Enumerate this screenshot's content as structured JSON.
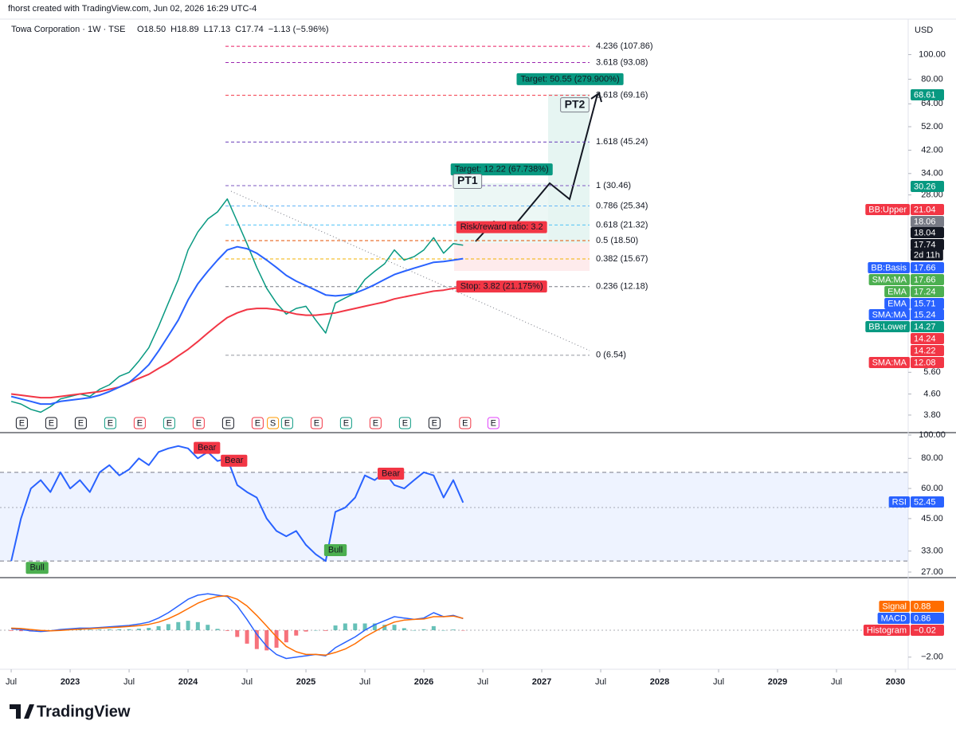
{
  "header": {
    "credit": "fhorst created with TradingView.com, Jun 02, 2026 16:29 UTC-4",
    "symbol": "Towa Corporation · 1W · TSE",
    "ohlc": [
      "O18.50",
      "H18.89",
      "L17.13",
      "C17.74",
      "−1.13 (−5.96%)"
    ],
    "currency": "USD"
  },
  "footer": {
    "brand": "TradingView"
  },
  "chart_data": [
    {
      "type": "line",
      "log_scale": true,
      "grid": false,
      "xlim": [
        2022.405,
        2030.108
      ],
      "ylim": [
        3.24,
        137
      ],
      "xticks": [
        {
          "value": 2022.5,
          "label": "Jul"
        },
        2023,
        {
          "value": 2023.5,
          "label": "Jul"
        },
        2024,
        {
          "value": 2024.5,
          "label": "Jul"
        },
        2025,
        {
          "value": 2025.5,
          "label": "Jul"
        },
        2026,
        {
          "value": 2026.5,
          "label": "Jul"
        },
        2027,
        {
          "value": 2027.5,
          "label": "Jul"
        },
        2028,
        {
          "value": 2028.5,
          "label": "Jul"
        },
        2029,
        {
          "value": 2029.5,
          "label": "Jul"
        },
        2030
      ],
      "yticks": [
        {
          "value": 3.8,
          "label": "3.80"
        },
        {
          "value": 4.6,
          "label": "4.60"
        },
        {
          "value": 5.6,
          "label": "5.60"
        },
        {
          "value": 28,
          "label": "28.00"
        },
        {
          "value": 34,
          "label": "34.00"
        },
        {
          "value": 42,
          "label": "42.00"
        },
        {
          "value": 52,
          "label": "52.00"
        },
        {
          "value": 64,
          "label": "64.00"
        },
        {
          "value": 80,
          "label": "80.00"
        },
        {
          "value": 100,
          "label": "100.00"
        }
      ],
      "x": [
        2022.5,
        2022.583,
        2022.667,
        2022.75,
        2022.833,
        2022.917,
        2023.0,
        2023.083,
        2023.167,
        2023.25,
        2023.333,
        2023.417,
        2023.5,
        2023.583,
        2023.667,
        2023.75,
        2023.833,
        2023.917,
        2024.0,
        2024.083,
        2024.167,
        2024.25,
        2024.333,
        2024.417,
        2024.5,
        2024.583,
        2024.667,
        2024.75,
        2024.833,
        2024.917,
        2025.0,
        2025.083,
        2025.167,
        2025.25,
        2025.333,
        2025.417,
        2025.5,
        2025.583,
        2025.667,
        2025.75,
        2025.833,
        2025.917,
        2026.0,
        2026.083,
        2026.167,
        2026.25,
        2026.333
      ],
      "series": [
        {
          "color": "#089981",
          "width": 1.5,
          "values": [
            4.3,
            4.2,
            4.0,
            3.9,
            4.1,
            4.4,
            4.5,
            4.6,
            4.5,
            4.8,
            5.0,
            5.4,
            5.6,
            6.2,
            7.0,
            8.5,
            10.5,
            13.0,
            17.0,
            20.0,
            22.5,
            24.0,
            27.0,
            22.0,
            18.0,
            14.5,
            12.0,
            10.5,
            9.5,
            10.0,
            10.2,
            9.0,
            8.0,
            10.5,
            11.0,
            11.5,
            13.0,
            14.0,
            15.0,
            17.0,
            15.5,
            16.0,
            17.0,
            19.0,
            16.5,
            18.0,
            17.74
          ]
        },
        {
          "color": "#f23645",
          "width": 2,
          "values": [
            4.6,
            4.55,
            4.5,
            4.45,
            4.45,
            4.5,
            4.55,
            4.6,
            4.65,
            4.7,
            4.8,
            4.9,
            5.1,
            5.3,
            5.5,
            5.8,
            6.1,
            6.5,
            6.9,
            7.4,
            8.0,
            8.6,
            9.2,
            9.6,
            9.9,
            10.0,
            10.0,
            9.9,
            9.7,
            9.5,
            9.4,
            9.4,
            9.5,
            9.6,
            9.8,
            10.0,
            10.2,
            10.4,
            10.6,
            10.9,
            11.1,
            11.3,
            11.5,
            11.7,
            11.8,
            12.0,
            12.08
          ]
        },
        {
          "color": "#2962ff",
          "width": 2,
          "values": [
            4.5,
            4.4,
            4.3,
            4.2,
            4.2,
            4.3,
            4.35,
            4.4,
            4.45,
            4.55,
            4.7,
            4.9,
            5.1,
            5.5,
            6.0,
            6.8,
            7.8,
            9.0,
            10.8,
            12.5,
            14.0,
            15.5,
            17.0,
            17.5,
            17.2,
            16.5,
            15.5,
            14.5,
            13.5,
            12.8,
            12.3,
            11.8,
            11.3,
            11.2,
            11.3,
            11.5,
            11.9,
            12.4,
            13.0,
            13.6,
            14.0,
            14.4,
            14.8,
            15.2,
            15.3,
            15.5,
            15.71
          ]
        }
      ],
      "fib": {
        "values": [
          107.86,
          93.08,
          69.16,
          45.24,
          30.46,
          25.34,
          21.32,
          18.5,
          15.67,
          12.18,
          6.54
        ],
        "value_labels": [
          "4.236 (107.86)",
          "3.618 (93.08)",
          "2.618 (69.16)",
          "1.618 (45.24)",
          "1 (30.46)",
          "0.786 (25.34)",
          "0.618 (21.32)",
          "0.5 (18.50)",
          "0.382 (15.67)",
          "0.236 (12.18)",
          "0 (6.54)"
        ],
        "colors": [
          "#e91e63",
          "#9c27b0",
          "#f23645",
          "#673ab7",
          "#7e57c2",
          "#64b5f6",
          "#4fc3f7",
          "#e65100",
          "#f0b000",
          "#787b86",
          "#9598a1"
        ]
      },
      "annotations": [
        {
          "text": "Target: 50.55 (279.900%)",
          "x": 2027.24,
          "y": 80,
          "color": "#089981",
          "style": "filled"
        },
        {
          "text": "Target: 12.22 (67.738%)",
          "x": 2026.66,
          "y": 35.3,
          "color": "#089981",
          "style": "filled"
        },
        {
          "text": "Risk/reward ratio: 3.2",
          "x": 2026.66,
          "y": 20.9,
          "color": "#f23645",
          "style": "filled"
        },
        {
          "text": "Stop: 3.82 (21.175%)",
          "x": 2026.66,
          "y": 12.2,
          "color": "#f23645",
          "style": "filled"
        },
        {
          "text": "PT1",
          "x": 2026.37,
          "y": 31.7,
          "color": "#131722",
          "style": "outline"
        },
        {
          "text": "PT2",
          "x": 2027.28,
          "y": 63.4,
          "color": "#131722",
          "style": "outline"
        }
      ],
      "events": [
        {
          "label": "E",
          "x": 2022.59,
          "color": "#131722"
        },
        {
          "label": "E",
          "x": 2022.84,
          "color": "#131722"
        },
        {
          "label": "E",
          "x": 2023.09,
          "color": "#131722"
        },
        {
          "label": "E",
          "x": 2023.34,
          "color": "#089981"
        },
        {
          "label": "E",
          "x": 2023.59,
          "color": "#f23645"
        },
        {
          "label": "E",
          "x": 2023.84,
          "color": "#089981"
        },
        {
          "label": "E",
          "x": 2024.09,
          "color": "#f23645"
        },
        {
          "label": "E",
          "x": 2024.34,
          "color": "#131722"
        },
        {
          "label": "E",
          "x": 2024.59,
          "color": "#f23645"
        },
        {
          "label": "S",
          "x": 2024.72,
          "color": "#ff9800"
        },
        {
          "label": "E",
          "x": 2024.84,
          "color": "#089981"
        },
        {
          "label": "E",
          "x": 2025.09,
          "color": "#f23645"
        },
        {
          "label": "E",
          "x": 2025.34,
          "color": "#089981"
        },
        {
          "label": "E",
          "x": 2025.59,
          "color": "#f23645"
        },
        {
          "label": "E",
          "x": 2025.84,
          "color": "#089981"
        },
        {
          "label": "E",
          "x": 2026.09,
          "color": "#131722"
        },
        {
          "label": "E",
          "x": 2026.35,
          "color": "#f23645"
        },
        {
          "label": "E",
          "x": 2026.59,
          "color": "#e040fb"
        }
      ],
      "price_tags": [
        {
          "value": 68.61,
          "color": "#089981"
        },
        {
          "value": 30.26,
          "color": "#089981"
        },
        {
          "name": "BB:Upper",
          "value": 21.04,
          "color": "#f23645"
        },
        {
          "value": 18.06,
          "color": "#787b86"
        },
        {
          "value": 18.04,
          "color": "#131722"
        },
        {
          "value": 17.74,
          "color": "#131722"
        },
        {
          "name": "2d 11h",
          "color": "#131722"
        },
        {
          "name": "BB:Basis",
          "value": 17.66,
          "color": "#2962ff"
        },
        {
          "name": "SMA:MA",
          "value": 17.66,
          "color": "#4caf50"
        },
        {
          "name": "EMA",
          "value": 17.24,
          "color": "#4caf50"
        },
        {
          "name": "EMA",
          "value": 15.71,
          "color": "#2962ff"
        },
        {
          "name": "SMA:MA",
          "value": 15.24,
          "color": "#2962ff"
        },
        {
          "name": "BB:Lower",
          "value": 14.27,
          "color": "#089981"
        },
        {
          "value": 14.24,
          "color": "#f23645"
        },
        {
          "value": 14.22,
          "color": "#f23645"
        },
        {
          "name": "SMA:MA",
          "value": 12.08,
          "color": "#f23645"
        }
      ]
    },
    {
      "type": "line",
      "log_scale": true,
      "ylim": [
        25.6,
        102.3
      ],
      "yticks": [
        {
          "value": 27,
          "label": "27.00"
        },
        {
          "value": 33,
          "label": "33.00"
        },
        {
          "value": 45,
          "label": "45.00"
        },
        {
          "value": 60,
          "label": "60.00"
        },
        {
          "value": 80,
          "label": "80.00"
        },
        {
          "value": 100,
          "label": "100.00"
        }
      ],
      "band": [
        30,
        70
      ],
      "midline": 50,
      "series": [
        {
          "name": "RSI",
          "color": "#2962ff",
          "width": 2,
          "values": [
            30,
            45,
            60,
            65,
            58,
            70,
            60,
            65,
            58,
            70,
            75,
            68,
            72,
            80,
            75,
            85,
            88,
            90,
            88,
            80,
            85,
            78,
            80,
            62,
            58,
            55,
            45,
            40,
            38,
            40,
            35,
            32,
            30,
            48,
            50,
            55,
            68,
            65,
            70,
            62,
            60,
            65,
            70,
            68,
            55,
            65,
            52.45
          ]
        }
      ],
      "annotations": [
        {
          "text": "Bear",
          "x": 2024.16,
          "y": 88.4,
          "color": "#f23645"
        },
        {
          "text": "Bear",
          "x": 2024.39,
          "y": 78.2,
          "color": "#f23645"
        },
        {
          "text": "Bear",
          "x": 2025.72,
          "y": 69.1,
          "color": "#f23645"
        },
        {
          "text": "Bull",
          "x": 2022.72,
          "y": 28.1,
          "color": "#4caf50"
        },
        {
          "text": "Bull",
          "x": 2025.25,
          "y": 33.3,
          "color": "#4caf50"
        }
      ],
      "price_tags": [
        {
          "name": "RSI",
          "value": 52.45,
          "color": "#2962ff"
        }
      ]
    },
    {
      "type": "line",
      "log_scale": false,
      "ylim": [
        -2.9,
        3.9
      ],
      "yticks": [
        {
          "value": -2,
          "label": "−2.00"
        }
      ],
      "series": [
        {
          "name": "Histogram",
          "type": "bar",
          "colors": [
            "#26a69a",
            "#f23645"
          ],
          "values": [
            -0.05,
            -0.07,
            -0.1,
            -0.08,
            0,
            0.07,
            0.07,
            0.07,
            0.04,
            0.05,
            0.06,
            0.07,
            0.07,
            0.11,
            0.17,
            0.3,
            0.45,
            0.6,
            0.7,
            0.6,
            0.4,
            0.1,
            -0.05,
            -0.5,
            -1.0,
            -1.4,
            -1.5,
            -1.3,
            -0.9,
            -0.4,
            -0.1,
            0,
            -0.05,
            0.35,
            0.5,
            0.5,
            0.5,
            0.5,
            0.4,
            0.4,
            0.15,
            0,
            0.07,
            0.3,
            0,
            0.05,
            -0.02
          ]
        },
        {
          "name": "MACD",
          "color": "#2962ff",
          "width": 1.5,
          "values": [
            0.1,
            0.05,
            -0.05,
            -0.1,
            -0.05,
            0.05,
            0.1,
            0.15,
            0.15,
            0.2,
            0.25,
            0.3,
            0.35,
            0.45,
            0.6,
            0.9,
            1.3,
            1.8,
            2.3,
            2.6,
            2.7,
            2.6,
            2.5,
            1.8,
            0.8,
            -0.3,
            -1.2,
            -1.8,
            -2.1,
            -2.0,
            -1.9,
            -1.8,
            -1.9,
            -1.3,
            -0.9,
            -0.5,
            0.0,
            0.4,
            0.7,
            1.0,
            0.9,
            0.8,
            0.9,
            1.3,
            1.0,
            1.1,
            0.86
          ]
        },
        {
          "name": "Signal",
          "color": "#ff6d00",
          "width": 1.5,
          "values": [
            0.15,
            0.12,
            0.05,
            -0.02,
            -0.05,
            -0.02,
            0.03,
            0.08,
            0.11,
            0.15,
            0.19,
            0.23,
            0.28,
            0.34,
            0.43,
            0.6,
            0.85,
            1.2,
            1.6,
            2.0,
            2.3,
            2.5,
            2.55,
            2.3,
            1.8,
            1.1,
            0.3,
            -0.5,
            -1.2,
            -1.6,
            -1.8,
            -1.8,
            -1.85,
            -1.65,
            -1.4,
            -1.0,
            -0.5,
            -0.1,
            0.3,
            0.6,
            0.75,
            0.8,
            0.83,
            1.0,
            1.0,
            1.05,
            0.88
          ]
        }
      ],
      "price_tags": [
        {
          "name": "Signal",
          "value": 0.88,
          "color": "#ff6d00"
        },
        {
          "name": "MACD",
          "value": 0.86,
          "color": "#2962ff"
        },
        {
          "name": "Histogram",
          "value": -0.02,
          "label": "−0.02",
          "color": "#f23645"
        }
      ]
    }
  ]
}
